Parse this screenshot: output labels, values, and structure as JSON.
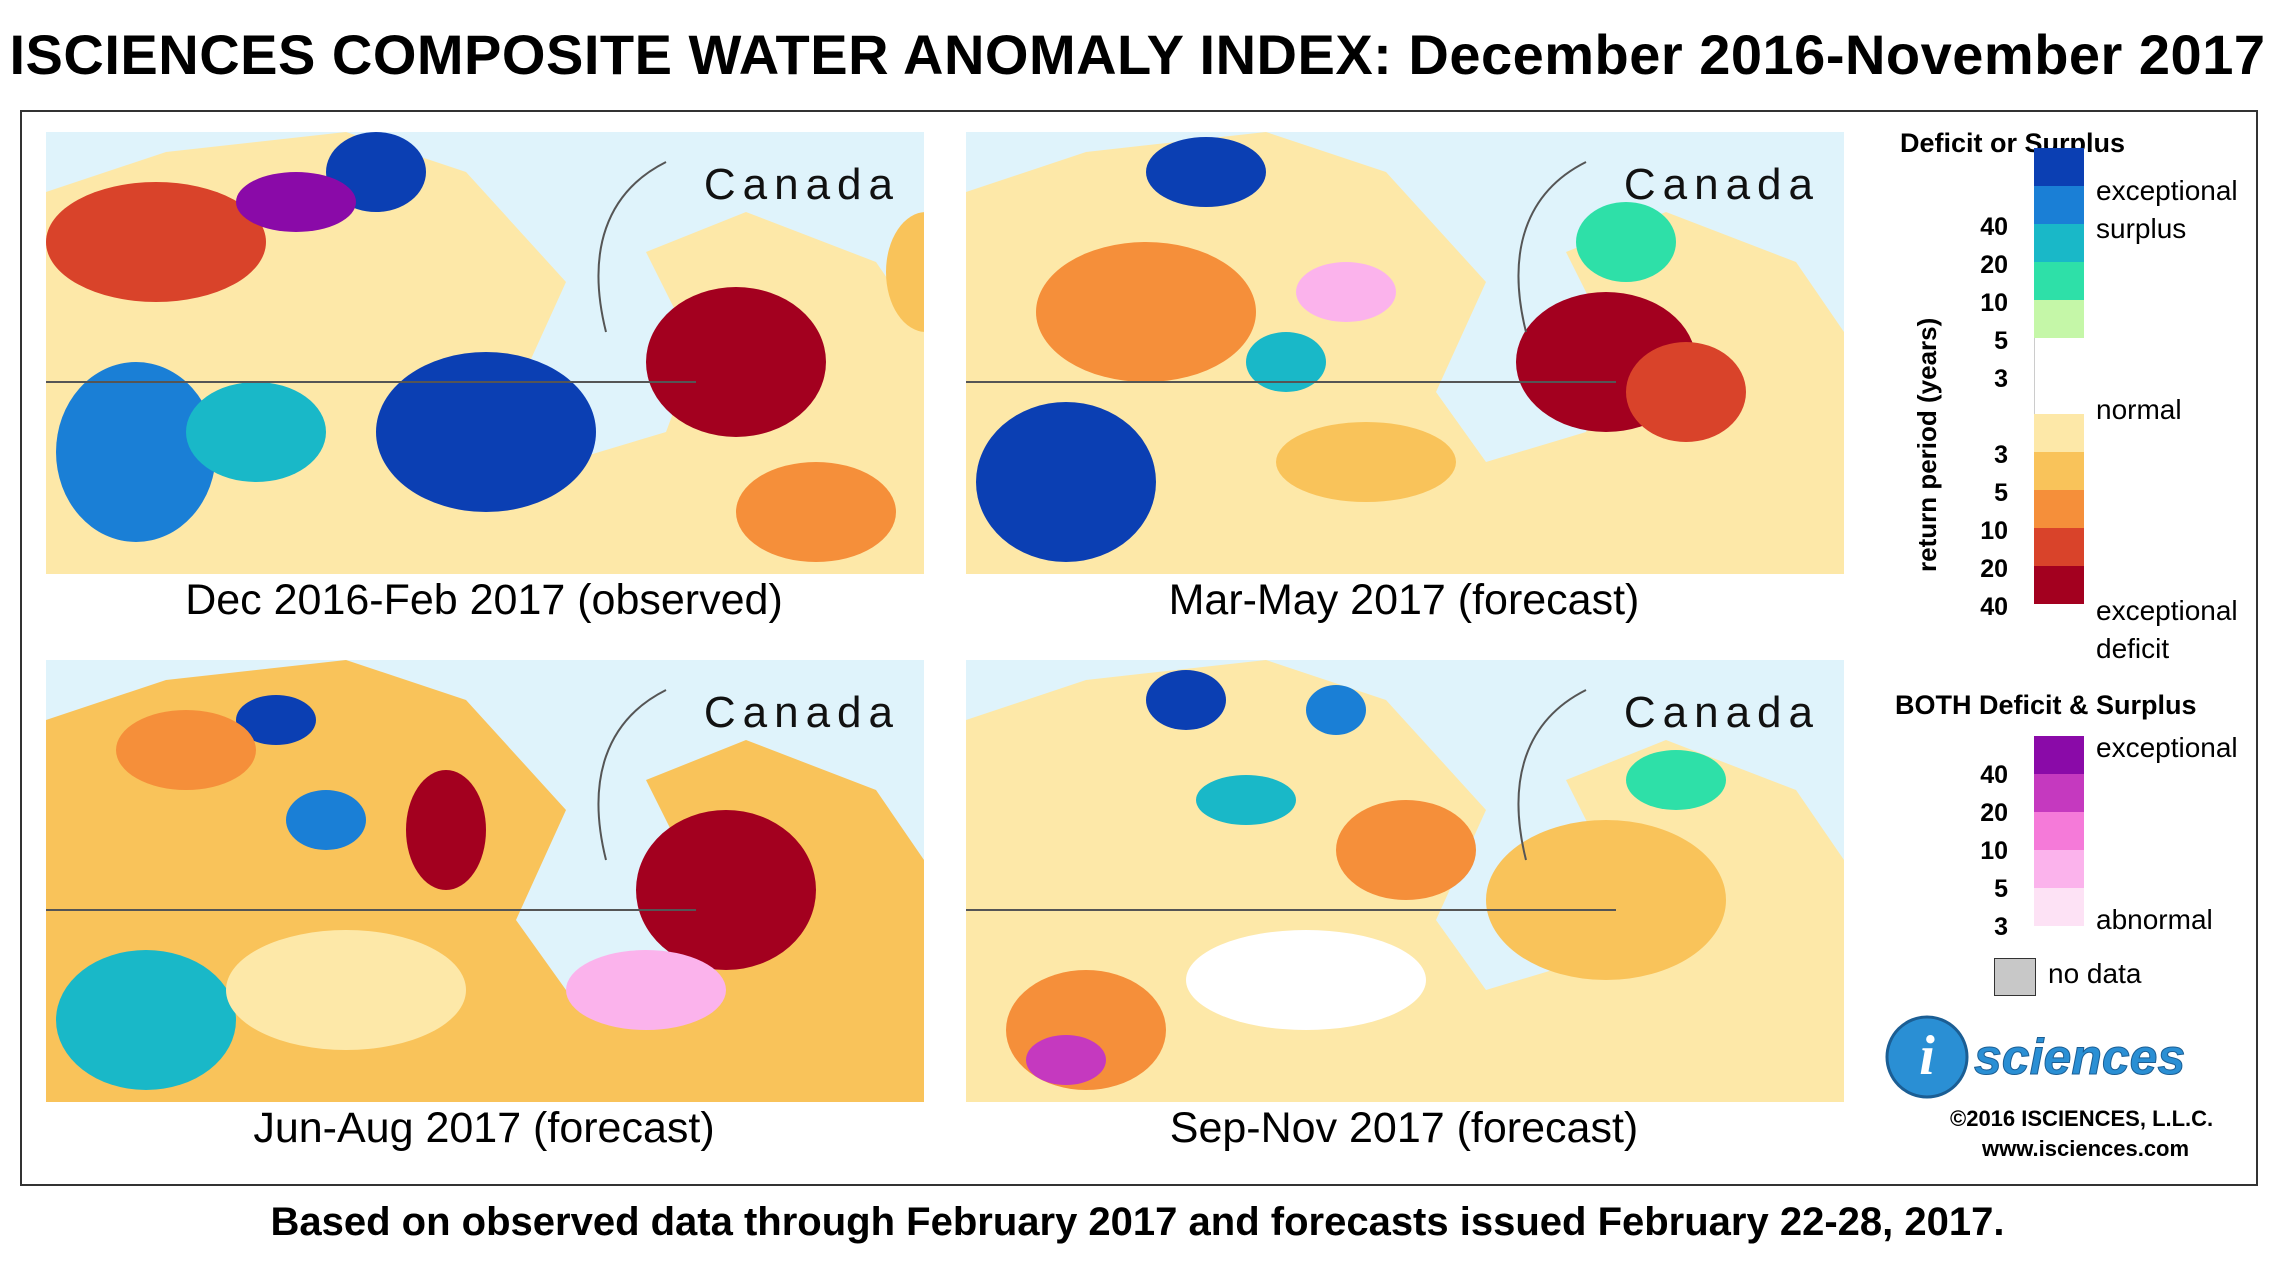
{
  "title": "ISCIENCES COMPOSITE WATER ANOMALY INDEX: December 2016-November 2017",
  "footer": "Based on observed data through February 2017 and forecasts issued February 22-28, 2017.",
  "maps": [
    {
      "country": "Canada",
      "caption": "Dec 2016-Feb 2017 (observed)"
    },
    {
      "country": "Canada",
      "caption": "Mar-May 2017 (forecast)"
    },
    {
      "country": "Canada",
      "caption": "Jun-Aug 2017 (forecast)"
    },
    {
      "country": "Canada",
      "caption": "Sep-Nov 2017 (forecast)"
    }
  ],
  "legend": {
    "deficit_surplus_title": "Deficit or Surplus",
    "axis_label": "return period (years)",
    "exceptional_surplus": "exceptional surplus",
    "normal": "normal",
    "exceptional_deficit": "exceptional deficit",
    "surplus_colors": [
      "#0b3fb3",
      "#1a7fd6",
      "#19b8c8",
      "#2ee0a8",
      "#c5f7a8"
    ],
    "normal_color": "#ffffff",
    "deficit_colors": [
      "#fde8a8",
      "#f9c35a",
      "#f58f3a",
      "#d9432a",
      "#a3001f"
    ],
    "surplus_ticks": [
      "40",
      "20",
      "10",
      "5",
      "3"
    ],
    "deficit_ticks": [
      "3",
      "5",
      "10",
      "20",
      "40"
    ],
    "both_title": "BOTH Deficit & Surplus",
    "both_colors": [
      "#8a0aa8",
      "#c539bf",
      "#f57ad9",
      "#fbb3ec",
      "#fde2f5"
    ],
    "both_ticks": [
      "40",
      "20",
      "10",
      "5",
      "3"
    ],
    "exceptional": "exceptional",
    "abnormal": "abnormal",
    "no_data": "no data",
    "no_data_color": "#c8c8c8"
  },
  "logo": {
    "letter": "i",
    "text": "sciences"
  },
  "copyright": "©2016 ISCIENCES, L.L.C.",
  "website": "www.isciences.com"
}
